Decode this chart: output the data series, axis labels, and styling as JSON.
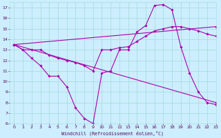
{
  "xlabel": "Windchill (Refroidissement éolien,°C)",
  "bg_color": "#cceeff",
  "grid_color": "#aadddd",
  "line_color": "#aa00aa",
  "xlim": [
    -0.5,
    23
  ],
  "ylim": [
    6,
    17.5
  ],
  "xticks": [
    0,
    1,
    2,
    3,
    4,
    5,
    6,
    7,
    8,
    9,
    10,
    11,
    12,
    13,
    14,
    15,
    16,
    17,
    18,
    19,
    20,
    21,
    22,
    23
  ],
  "yticks": [
    6,
    7,
    8,
    9,
    10,
    11,
    12,
    13,
    14,
    15,
    16,
    17
  ],
  "lines": [
    {
      "x": [
        0,
        1,
        2,
        3,
        4,
        5,
        6,
        7,
        8,
        9,
        10,
        11,
        12,
        13,
        14,
        15,
        16,
        17,
        18,
        19,
        20,
        21,
        22,
        23
      ],
      "y": [
        13.5,
        13.0,
        12.2,
        11.5,
        10.5,
        10.5,
        9.5,
        7.5,
        6.5,
        6.0,
        10.8,
        11.0,
        13.0,
        13.0,
        14.7,
        15.3,
        17.2,
        17.3,
        16.8,
        13.3,
        10.8,
        9.0,
        8.0,
        7.8
      ]
    },
    {
      "x": [
        0,
        1,
        2,
        3,
        4,
        5,
        6,
        7,
        8,
        9,
        10,
        11,
        12,
        13,
        14,
        15,
        16,
        17,
        18,
        19,
        20,
        21,
        22,
        23
      ],
      "y": [
        13.5,
        13.0,
        13.0,
        13.0,
        12.5,
        12.2,
        12.0,
        11.8,
        11.5,
        11.0,
        13.0,
        13.0,
        13.2,
        13.3,
        13.8,
        14.3,
        14.8,
        15.0,
        15.2,
        15.2,
        15.0,
        14.8,
        14.5,
        14.3
      ]
    },
    {
      "x": [
        0,
        23
      ],
      "y": [
        13.5,
        8.0
      ]
    },
    {
      "x": [
        0,
        23
      ],
      "y": [
        13.5,
        15.2
      ]
    }
  ]
}
